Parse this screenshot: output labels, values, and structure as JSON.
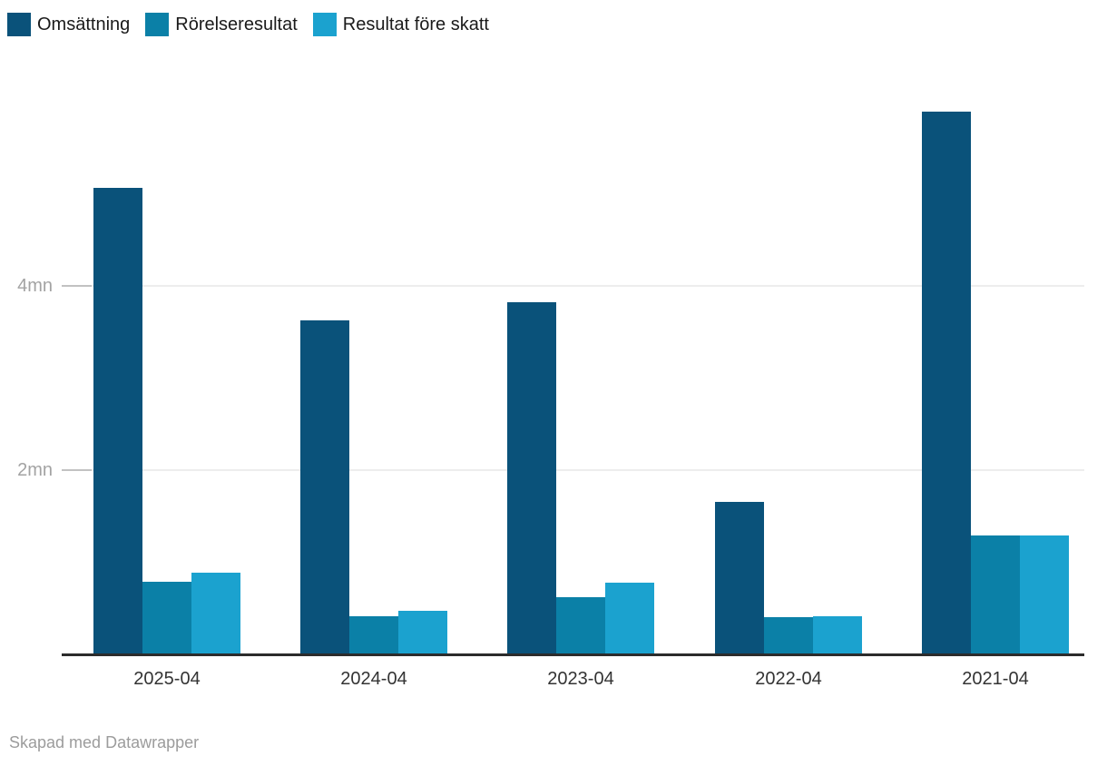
{
  "legend": {
    "items": [
      {
        "label": "Omsättning",
        "color": "#0a527a"
      },
      {
        "label": "Rörelseresultat",
        "color": "#0b80a7"
      },
      {
        "label": "Resultat före skatt",
        "color": "#1ba2cf"
      }
    ]
  },
  "chart_data": {
    "type": "bar",
    "unit": "mn",
    "categories": [
      "2025-04",
      "2024-04",
      "2023-04",
      "2022-04",
      "2021-04"
    ],
    "series": [
      {
        "name": "Omsättning",
        "color": "#0a527a",
        "values": [
          5.06,
          3.63,
          3.82,
          1.66,
          5.89
        ]
      },
      {
        "name": "Rörelseresultat",
        "color": "#0b80a7",
        "values": [
          0.79,
          0.41,
          0.62,
          0.4,
          1.29
        ]
      },
      {
        "name": "Resultat före skatt",
        "color": "#1ba2cf",
        "values": [
          0.89,
          0.47,
          0.78,
          0.41,
          1.29
        ]
      }
    ],
    "title": "",
    "xlabel": "",
    "ylabel": "",
    "y_ticks": [
      {
        "value": 2,
        "label": "2mn"
      },
      {
        "value": 4,
        "label": "4mn"
      }
    ],
    "ylim": [
      0,
      6.2
    ],
    "grid": true,
    "legend_position": "top"
  },
  "footer": {
    "credit": "Skapad med Datawrapper"
  }
}
